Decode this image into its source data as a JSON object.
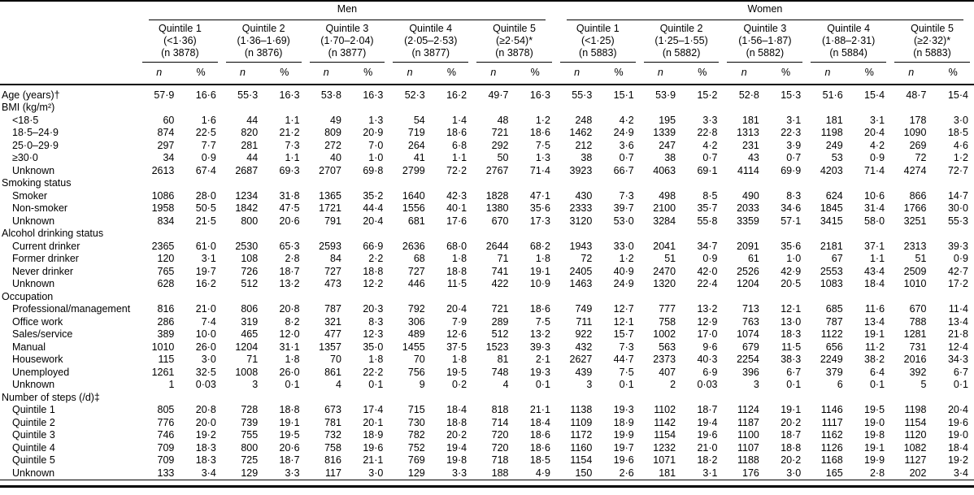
{
  "header": {
    "col_n": "n",
    "col_pct": "%",
    "groups": [
      {
        "label": "Men",
        "quintiles": [
          {
            "title": "Quintile 1",
            "range": "(<1·36)",
            "count": "(n 3878)"
          },
          {
            "title": "Quintile 2",
            "range": "(1·36–1·69)",
            "count": "(n 3876)"
          },
          {
            "title": "Quintile 3",
            "range": "(1·70–2·04)",
            "count": "(n 3877)"
          },
          {
            "title": "Quintile 4",
            "range": "(2·05–2·53)",
            "count": "(n 3877)"
          },
          {
            "title": "Quintile 5",
            "range": "(≥2·54)*",
            "count": "(n 3878)"
          }
        ]
      },
      {
        "label": "Women",
        "quintiles": [
          {
            "title": "Quintile 1",
            "range": "(<1·25)",
            "count": "(n 5883)"
          },
          {
            "title": "Quintile 2",
            "range": "(1·25–1·55)",
            "count": "(n 5882)"
          },
          {
            "title": "Quintile 3",
            "range": "(1·56–1·87)",
            "count": "(n 5882)"
          },
          {
            "title": "Quintile 4",
            "range": "(1·88–2·31)",
            "count": "(n 5884)"
          },
          {
            "title": "Quintile 5",
            "range": "(≥2·32)*",
            "count": "(n 5883)"
          }
        ]
      }
    ]
  },
  "rows": [
    {
      "label": "Age (years)†",
      "indent": 0,
      "values": [
        "57·9",
        "16·6",
        "55·3",
        "16·3",
        "53·8",
        "16·3",
        "52·3",
        "16·2",
        "49·7",
        "16·3",
        "55·3",
        "15·1",
        "53·9",
        "15·2",
        "52·8",
        "15·3",
        "51·6",
        "15·4",
        "48·7",
        "15·4"
      ]
    },
    {
      "label": "BMI (kg/m²)",
      "indent": 0,
      "values": []
    },
    {
      "label": "<18·5",
      "indent": 1,
      "values": [
        "60",
        "1·6",
        "44",
        "1·1",
        "49",
        "1·3",
        "54",
        "1·4",
        "48",
        "1·2",
        "248",
        "4·2",
        "195",
        "3·3",
        "181",
        "3·1",
        "181",
        "3·1",
        "178",
        "3·0"
      ]
    },
    {
      "label": "18·5–24·9",
      "indent": 1,
      "values": [
        "874",
        "22·5",
        "820",
        "21·2",
        "809",
        "20·9",
        "719",
        "18·6",
        "721",
        "18·6",
        "1462",
        "24·9",
        "1339",
        "22·8",
        "1313",
        "22·3",
        "1198",
        "20·4",
        "1090",
        "18·5"
      ]
    },
    {
      "label": "25·0–29·9",
      "indent": 1,
      "values": [
        "297",
        "7·7",
        "281",
        "7·3",
        "272",
        "7·0",
        "264",
        "6·8",
        "292",
        "7·5",
        "212",
        "3·6",
        "247",
        "4·2",
        "231",
        "3·9",
        "249",
        "4·2",
        "269",
        "4·6"
      ]
    },
    {
      "label": "≥30·0",
      "indent": 1,
      "values": [
        "34",
        "0·9",
        "44",
        "1·1",
        "40",
        "1·0",
        "41",
        "1·1",
        "50",
        "1·3",
        "38",
        "0·7",
        "38",
        "0·7",
        "43",
        "0·7",
        "53",
        "0·9",
        "72",
        "1·2"
      ]
    },
    {
      "label": "Unknown",
      "indent": 1,
      "values": [
        "2613",
        "67·4",
        "2687",
        "69·3",
        "2707",
        "69·8",
        "2799",
        "72·2",
        "2767",
        "71·4",
        "3923",
        "66·7",
        "4063",
        "69·1",
        "4114",
        "69·9",
        "4203",
        "71·4",
        "4274",
        "72·7"
      ]
    },
    {
      "label": "Smoking status",
      "indent": 0,
      "values": []
    },
    {
      "label": "Smoker",
      "indent": 1,
      "values": [
        "1086",
        "28·0",
        "1234",
        "31·8",
        "1365",
        "35·2",
        "1640",
        "42·3",
        "1828",
        "47·1",
        "430",
        "7·3",
        "498",
        "8·5",
        "490",
        "8·3",
        "624",
        "10·6",
        "866",
        "14·7"
      ]
    },
    {
      "label": "Non-smoker",
      "indent": 1,
      "values": [
        "1958",
        "50·5",
        "1842",
        "47·5",
        "1721",
        "44·4",
        "1556",
        "40·1",
        "1380",
        "35·6",
        "2333",
        "39·7",
        "2100",
        "35·7",
        "2033",
        "34·6",
        "1845",
        "31·4",
        "1766",
        "30·0"
      ]
    },
    {
      "label": "Unknown",
      "indent": 1,
      "values": [
        "834",
        "21·5",
        "800",
        "20·6",
        "791",
        "20·4",
        "681",
        "17·6",
        "670",
        "17·3",
        "3120",
        "53·0",
        "3284",
        "55·8",
        "3359",
        "57·1",
        "3415",
        "58·0",
        "3251",
        "55·3"
      ]
    },
    {
      "label": "Alcohol drinking status",
      "indent": 0,
      "values": []
    },
    {
      "label": "Current drinker",
      "indent": 1,
      "values": [
        "2365",
        "61·0",
        "2530",
        "65·3",
        "2593",
        "66·9",
        "2636",
        "68·0",
        "2644",
        "68·2",
        "1943",
        "33·0",
        "2041",
        "34·7",
        "2091",
        "35·6",
        "2181",
        "37·1",
        "2313",
        "39·3"
      ]
    },
    {
      "label": "Former drinker",
      "indent": 1,
      "values": [
        "120",
        "3·1",
        "108",
        "2·8",
        "84",
        "2·2",
        "68",
        "1·8",
        "71",
        "1·8",
        "72",
        "1·2",
        "51",
        "0·9",
        "61",
        "1·0",
        "67",
        "1·1",
        "51",
        "0·9"
      ]
    },
    {
      "label": "Never drinker",
      "indent": 1,
      "values": [
        "765",
        "19·7",
        "726",
        "18·7",
        "727",
        "18·8",
        "727",
        "18·8",
        "741",
        "19·1",
        "2405",
        "40·9",
        "2470",
        "42·0",
        "2526",
        "42·9",
        "2553",
        "43·4",
        "2509",
        "42·7"
      ]
    },
    {
      "label": "Unknown",
      "indent": 1,
      "values": [
        "628",
        "16·2",
        "512",
        "13·2",
        "473",
        "12·2",
        "446",
        "11·5",
        "422",
        "10·9",
        "1463",
        "24·9",
        "1320",
        "22·4",
        "1204",
        "20·5",
        "1083",
        "18·4",
        "1010",
        "17·2"
      ]
    },
    {
      "label": "Occupation",
      "indent": 0,
      "values": []
    },
    {
      "label": "Professional/management",
      "indent": 1,
      "values": [
        "816",
        "21·0",
        "806",
        "20·8",
        "787",
        "20·3",
        "792",
        "20·4",
        "721",
        "18·6",
        "749",
        "12·7",
        "777",
        "13·2",
        "713",
        "12·1",
        "685",
        "11·6",
        "670",
        "11·4"
      ]
    },
    {
      "label": "Office work",
      "indent": 1,
      "values": [
        "286",
        "7·4",
        "319",
        "8·2",
        "321",
        "8·3",
        "306",
        "7·9",
        "289",
        "7·5",
        "711",
        "12·1",
        "758",
        "12·9",
        "763",
        "13·0",
        "787",
        "13·4",
        "788",
        "13·4"
      ]
    },
    {
      "label": "Sales/service",
      "indent": 1,
      "values": [
        "389",
        "10·0",
        "465",
        "12·0",
        "477",
        "12·3",
        "489",
        "12·6",
        "512",
        "13·2",
        "922",
        "15·7",
        "1002",
        "17·0",
        "1074",
        "18·3",
        "1122",
        "19·1",
        "1281",
        "21·8"
      ]
    },
    {
      "label": "Manual",
      "indent": 1,
      "values": [
        "1010",
        "26·0",
        "1204",
        "31·1",
        "1357",
        "35·0",
        "1455",
        "37·5",
        "1523",
        "39·3",
        "432",
        "7·3",
        "563",
        "9·6",
        "679",
        "11·5",
        "656",
        "11·2",
        "731",
        "12·4"
      ]
    },
    {
      "label": "Housework",
      "indent": 1,
      "values": [
        "115",
        "3·0",
        "71",
        "1·8",
        "70",
        "1·8",
        "70",
        "1·8",
        "81",
        "2·1",
        "2627",
        "44·7",
        "2373",
        "40·3",
        "2254",
        "38·3",
        "2249",
        "38·2",
        "2016",
        "34·3"
      ]
    },
    {
      "label": "Unemployed",
      "indent": 1,
      "values": [
        "1261",
        "32·5",
        "1008",
        "26·0",
        "861",
        "22·2",
        "756",
        "19·5",
        "748",
        "19·3",
        "439",
        "7·5",
        "407",
        "6·9",
        "396",
        "6·7",
        "379",
        "6·4",
        "392",
        "6·7"
      ]
    },
    {
      "label": "Unknown",
      "indent": 1,
      "values": [
        "1",
        "0·03",
        "3",
        "0·1",
        "4",
        "0·1",
        "9",
        "0·2",
        "4",
        "0·1",
        "3",
        "0·1",
        "2",
        "0·03",
        "3",
        "0·1",
        "6",
        "0·1",
        "5",
        "0·1"
      ]
    },
    {
      "label": "Number of steps (/d)‡",
      "indent": 0,
      "values": []
    },
    {
      "label": "Quintile 1",
      "indent": 1,
      "values": [
        "805",
        "20·8",
        "728",
        "18·8",
        "673",
        "17·4",
        "715",
        "18·4",
        "818",
        "21·1",
        "1138",
        "19·3",
        "1102",
        "18·7",
        "1124",
        "19·1",
        "1146",
        "19·5",
        "1198",
        "20·4"
      ]
    },
    {
      "label": "Quintile 2",
      "indent": 1,
      "values": [
        "776",
        "20·0",
        "739",
        "19·1",
        "781",
        "20·1",
        "730",
        "18·8",
        "714",
        "18·4",
        "1109",
        "18·9",
        "1142",
        "19·4",
        "1187",
        "20·2",
        "1117",
        "19·0",
        "1154",
        "19·6"
      ]
    },
    {
      "label": "Quintile 3",
      "indent": 1,
      "values": [
        "746",
        "19·2",
        "755",
        "19·5",
        "732",
        "18·9",
        "782",
        "20·2",
        "720",
        "18·6",
        "1172",
        "19·9",
        "1154",
        "19·6",
        "1100",
        "18·7",
        "1162",
        "19·8",
        "1120",
        "19·0"
      ]
    },
    {
      "label": "Quintile 4",
      "indent": 1,
      "values": [
        "709",
        "18·3",
        "800",
        "20·6",
        "758",
        "19·6",
        "752",
        "19·4",
        "720",
        "18·6",
        "1160",
        "19·7",
        "1232",
        "21·0",
        "1107",
        "18·8",
        "1126",
        "19·1",
        "1082",
        "18·4"
      ]
    },
    {
      "label": "Quintile 5",
      "indent": 1,
      "values": [
        "709",
        "18·3",
        "725",
        "18·7",
        "816",
        "21·1",
        "769",
        "19·8",
        "718",
        "18·5",
        "1154",
        "19·6",
        "1071",
        "18·2",
        "1188",
        "20·2",
        "1168",
        "19·9",
        "1127",
        "19·2"
      ]
    },
    {
      "label": "Unknown",
      "indent": 1,
      "values": [
        "133",
        "3·4",
        "129",
        "3·3",
        "117",
        "3·0",
        "129",
        "3·3",
        "188",
        "4·9",
        "150",
        "2·6",
        "181",
        "3·1",
        "176",
        "3·0",
        "165",
        "2·8",
        "202",
        "3·4"
      ]
    }
  ]
}
